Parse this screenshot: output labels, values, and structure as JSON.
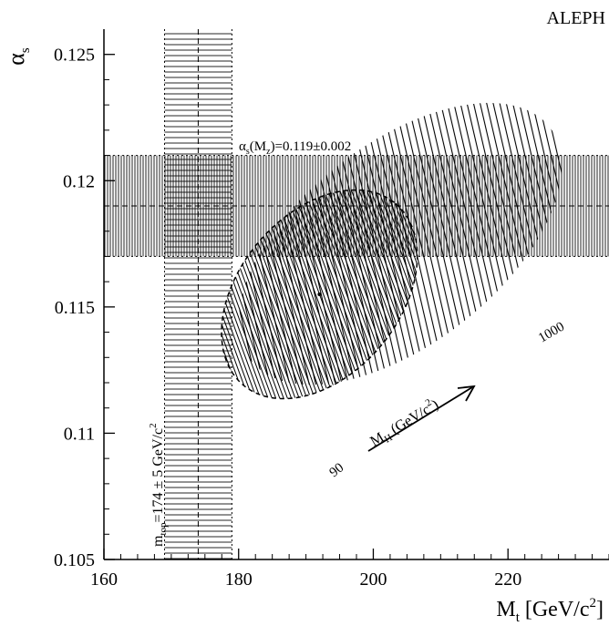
{
  "chart_data": {
    "type": "contour",
    "experiment_label": "ALEPH",
    "xlabel": {
      "main": "M",
      "sub": "t",
      "rest": " [GeV/c",
      "sup": "2",
      "end": "]"
    },
    "ylabel": {
      "main": "α",
      "sub": "s"
    },
    "xlim": [
      160,
      235
    ],
    "ylim": [
      0.105,
      0.126
    ],
    "x_ticks": [
      160,
      180,
      200,
      220
    ],
    "x_tick_labels": [
      "160",
      "180",
      "200",
      "220"
    ],
    "y_ticks": [
      0.105,
      0.11,
      0.115,
      0.12,
      0.125
    ],
    "y_tick_labels": [
      "0.105",
      "0.11",
      "0.115",
      "0.12",
      "0.125"
    ],
    "alpha_s_band": {
      "central": 0.119,
      "error": 0.002,
      "label": {
        "pre": "α",
        "sub1": "s",
        "mid": "(M",
        "sub2": "z",
        "post": ")=0.119±0.002"
      }
    },
    "mtop_band": {
      "central": 174,
      "error": 5,
      "label": {
        "pre": "m",
        "sub": "top",
        "post": "=174 ± 5 GeV/c",
        "sup": "2"
      }
    },
    "contours": [
      {
        "higgs_mass": "90",
        "center_x": 192,
        "center_y": 0.1155
      },
      {
        "higgs_mass": "1000",
        "center_x": 204,
        "center_y": 0.1175
      }
    ],
    "higgs_arrow_label": {
      "main": "M",
      "sub": "H",
      "post": " (GeV/c",
      "sup": "2",
      "end": ")"
    },
    "contour_labels": [
      "90",
      "1000"
    ]
  }
}
